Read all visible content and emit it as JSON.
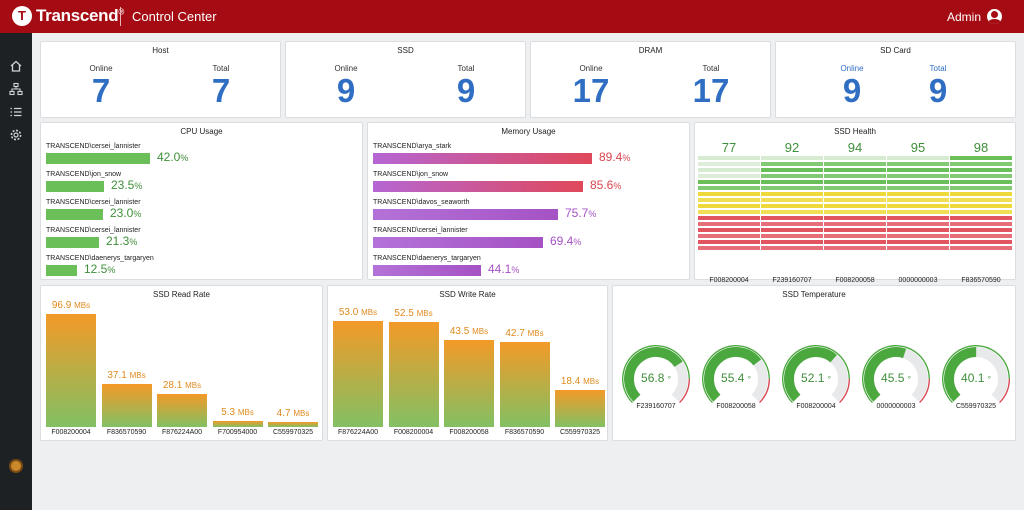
{
  "header": {
    "brand": "Transcend",
    "brand_mark": "T",
    "brand_reg": "®",
    "title": "Control Center",
    "user": "Admin"
  },
  "sidebar": {
    "items": [
      {
        "icon": "home-icon"
      },
      {
        "icon": "topology-icon"
      },
      {
        "icon": "list-icon"
      },
      {
        "icon": "gear-icon"
      }
    ],
    "emblem_icon": "emblem-icon"
  },
  "counters": [
    {
      "title": "Host",
      "online_label": "Online",
      "total_label": "Total",
      "online": "7",
      "total": "7"
    },
    {
      "title": "SSD",
      "online_label": "Online",
      "total_label": "Total",
      "online": "9",
      "total": "9"
    },
    {
      "title": "DRAM",
      "online_label": "Online",
      "total_label": "Total",
      "online": "17",
      "total": "17"
    },
    {
      "title": "SD Card",
      "online_label": "Online",
      "total_label": "Total",
      "online": "9",
      "total": "9"
    }
  ],
  "cpu": {
    "title": "CPU Usage",
    "unit": "%",
    "color": "#6bbf59",
    "rows": [
      {
        "host": "TRANSCEND\\cersei_lannister",
        "value": 42.0,
        "value_text": "42.0"
      },
      {
        "host": "TRANSCEND\\jon_snow",
        "value": 23.5,
        "value_text": "23.5"
      },
      {
        "host": "TRANSCEND\\cersei_lannister",
        "value": 23.0,
        "value_text": "23.0"
      },
      {
        "host": "TRANSCEND\\cersei_lannister",
        "value": 21.3,
        "value_text": "21.3"
      },
      {
        "host": "TRANSCEND\\daenerys_targaryen",
        "value": 12.5,
        "value_text": "12.5"
      }
    ]
  },
  "memory": {
    "title": "Memory Usage",
    "unit": "%",
    "rows": [
      {
        "host": "TRANSCEND\\arya_stark",
        "value": 89.4,
        "value_text": "89.4",
        "color": "#d8434e"
      },
      {
        "host": "TRANSCEND\\jon_snow",
        "value": 85.6,
        "value_text": "85.6",
        "color": "#d8434e"
      },
      {
        "host": "TRANSCEND\\davos_seaworth",
        "value": 75.7,
        "value_text": "75.7",
        "color": "#a552c4"
      },
      {
        "host": "TRANSCEND\\cersei_lannister",
        "value": 69.4,
        "value_text": "69.4",
        "color": "#a552c4"
      },
      {
        "host": "TRANSCEND\\daenerys_targaryen",
        "value": 44.1,
        "value_text": "44.1",
        "color": "#a552c4"
      }
    ]
  },
  "health": {
    "title": "SSD Health",
    "drives": [
      {
        "id": "F008200004",
        "value": 77,
        "value_text": "77"
      },
      {
        "id": "F239160707",
        "value": 92,
        "value_text": "92"
      },
      {
        "id": "F008200058",
        "value": 94,
        "value_text": "94"
      },
      {
        "id": "0000000003",
        "value": 95,
        "value_text": "95"
      },
      {
        "id": "F836570590",
        "value": 98,
        "value_text": "98"
      }
    ]
  },
  "chart_data": [
    {
      "type": "bar",
      "title": "SSD Read Rate",
      "unit": "MBs",
      "categories": [
        "F008200004",
        "F836570590",
        "F876224A00",
        "F700954000",
        "C559970325"
      ],
      "values": [
        96.9,
        37.1,
        28.1,
        5.3,
        4.7
      ],
      "value_texts": [
        "96.9",
        "37.1",
        "28.1",
        "5.3",
        "4.7"
      ],
      "ylim": [
        0,
        100
      ]
    },
    {
      "type": "bar",
      "title": "SSD Write Rate",
      "unit": "MBs",
      "categories": [
        "F876224A00",
        "F008200004",
        "F008200058",
        "F836570590",
        "C559970325"
      ],
      "values": [
        53.0,
        52.5,
        43.5,
        42.7,
        18.4
      ],
      "value_texts": [
        "53.0",
        "52.5",
        "43.5",
        "42.7",
        "18.4"
      ],
      "ylim": [
        0,
        55
      ]
    }
  ],
  "temperature": {
    "title": "SSD Temperature",
    "unit": "°",
    "max": 80,
    "drives": [
      {
        "id": "F239160707",
        "value": 56.8,
        "value_text": "56.8"
      },
      {
        "id": "F008200058",
        "value": 55.4,
        "value_text": "55.4"
      },
      {
        "id": "F008200004",
        "value": 52.1,
        "value_text": "52.1"
      },
      {
        "id": "0000000003",
        "value": 45.5,
        "value_text": "45.5"
      },
      {
        "id": "C559970325",
        "value": 40.1,
        "value_text": "40.1"
      }
    ]
  },
  "colors": {
    "brand": "#a50b12",
    "number_blue": "#2f6ec2",
    "health_green": "#6bbf59",
    "health_yellow": "#efd83a",
    "health_red": "#e25560",
    "bar_top": "#f39a28",
    "bar_bottom": "#82c063",
    "gauge_green": "#4aa83e",
    "gauge_track": "#e8e9eb",
    "gauge_red": "#d8434e"
  }
}
